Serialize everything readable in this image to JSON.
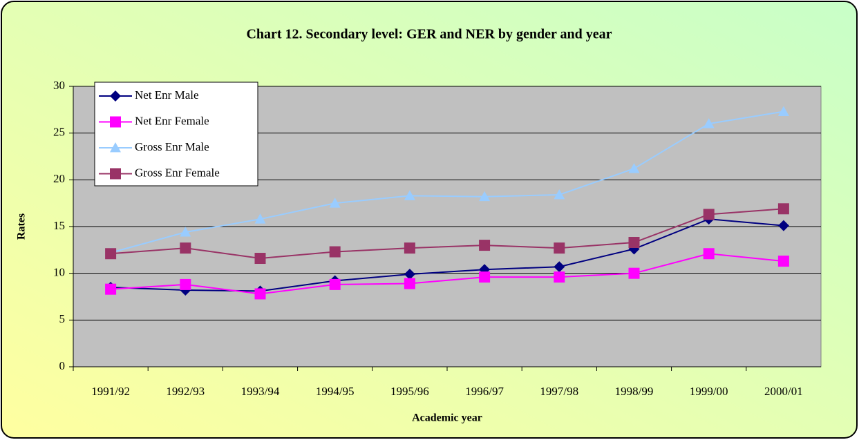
{
  "chart_data": {
    "type": "line",
    "title": "Chart 12. Secondary level: GER and NER by gender and year",
    "x_label": "Academic year",
    "y_label": "Rates",
    "categories": [
      "1991/92",
      "1992/93",
      "1993/94",
      "1994/95",
      "1995/96",
      "1996/97",
      "1997/98",
      "1998/99",
      "1999/00",
      "2000/01"
    ],
    "series": [
      {
        "name": "Net Enr Male",
        "color": "#000080",
        "marker": "diamond",
        "values": [
          8.5,
          8.2,
          8.1,
          9.2,
          9.9,
          10.4,
          10.7,
          12.6,
          15.8,
          15.1
        ]
      },
      {
        "name": "Net Enr Female",
        "color": "#ff00ff",
        "marker": "square",
        "values": [
          8.3,
          8.8,
          7.8,
          8.8,
          8.9,
          9.6,
          9.6,
          10.0,
          12.1,
          11.3
        ]
      },
      {
        "name": "Gross Enr Male",
        "color": "#99ccff",
        "marker": "triangle",
        "values": [
          12.2,
          14.4,
          15.8,
          17.5,
          18.3,
          18.2,
          18.4,
          21.2,
          26.0,
          27.3
        ]
      },
      {
        "name": "Gross Enr Female",
        "color": "#993366",
        "marker": "square",
        "values": [
          12.1,
          12.7,
          11.6,
          12.3,
          12.7,
          13.0,
          12.7,
          13.3,
          16.3,
          16.9
        ]
      }
    ],
    "ylim": [
      0,
      30
    ],
    "yticks": [
      0,
      5,
      10,
      15,
      20,
      25,
      30
    ],
    "grid": true,
    "legend": "top-left"
  }
}
